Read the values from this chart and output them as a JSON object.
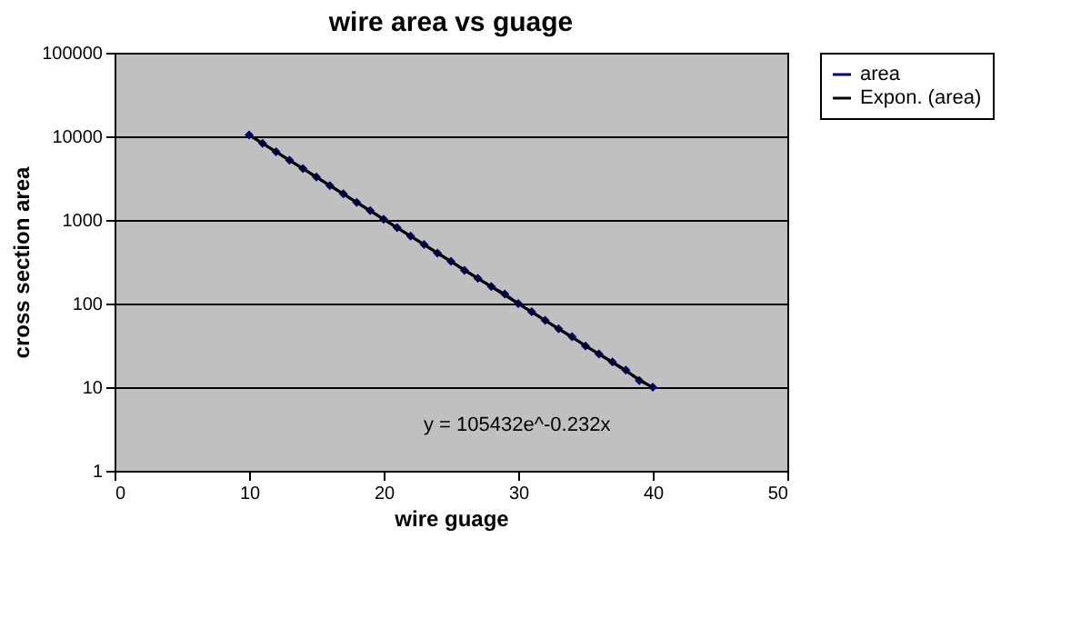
{
  "chart_data": {
    "type": "line",
    "title": "wire area vs guage",
    "xlabel": "wire guage",
    "ylabel": "cross section area",
    "x": [
      10,
      11,
      12,
      13,
      14,
      15,
      16,
      17,
      18,
      19,
      20,
      21,
      22,
      23,
      24,
      25,
      26,
      27,
      28,
      29,
      30,
      31,
      32,
      33,
      34,
      35,
      36,
      37,
      38,
      39,
      40
    ],
    "series": [
      {
        "name": "area",
        "color": "#000080",
        "marker": "diamond",
        "values": [
          10380,
          8230,
          6530,
          5180,
          4110,
          3260,
          2580,
          2050,
          1620,
          1290,
          1020,
          810,
          640,
          510,
          400,
          320,
          250,
          200,
          160,
          130,
          100,
          80,
          63,
          50,
          40,
          31,
          25,
          20,
          16,
          12,
          10
        ]
      },
      {
        "name": "Expon. (area)",
        "type": "line",
        "color": "#000000",
        "marker": "none",
        "x": [
          10,
          40
        ],
        "values": [
          10360,
          9.8
        ]
      }
    ],
    "log": "y",
    "xlim": [
      0,
      50
    ],
    "xticks": [
      0,
      10,
      20,
      30,
      40,
      50
    ],
    "ylim": [
      1,
      100000
    ],
    "yticks": [
      1,
      10,
      100,
      1000,
      10000,
      100000
    ],
    "grid": "y",
    "legend": "right",
    "annotations": [
      "y = 105432e^-0.232x"
    ]
  }
}
